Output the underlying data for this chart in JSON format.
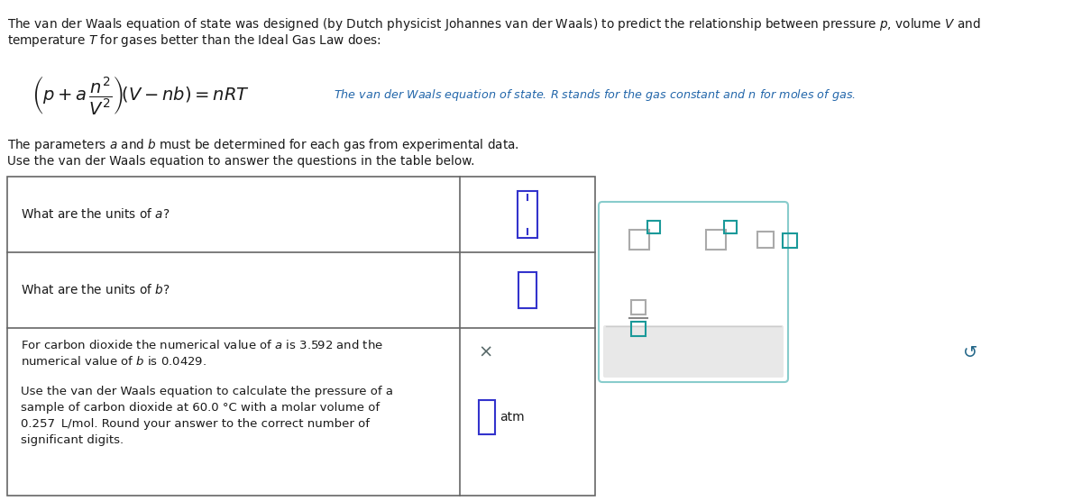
{
  "bg_color": "#ffffff",
  "text_color": "#1a1a1a",
  "italic_text_color": "#444444",
  "table_border_color": "#666666",
  "input_box_blue": "#3333cc",
  "input_box_teal": "#1a9999",
  "popup_border_color": "#88cccc",
  "popup_bg": "#ffffff",
  "popup_footer_bg": "#e8e8e8",
  "note_color": "#2266aa",
  "x_color": "#556666",
  "undo_color": "#226688",
  "top_line1": "The van der Waals equation of state was designed (by Dutch physicist Johannes van der Waals) to predict the relationship between pressure $p$, volume $V$ and",
  "top_line2": "temperature $T$ for gases better than the Ideal Gas Law does:",
  "param_text": "The parameters $a$ and $b$ must be determined for each gas from experimental data.",
  "use_text": "Use the van der Waals equation to answer the questions in the table below.",
  "note_text": "The van der Waals equation of state. $R$ stands for the gas constant and $n$ for moles of gas.",
  "row1_q": "What are the units of $a$?",
  "row2_q": "What are the units of $b$?",
  "row3_q1a": "For carbon dioxide the numerical value of $a$ is 3.592 and the",
  "row3_q1b": "numerical value of $b$ is 0.0429.",
  "row3_q2a": "Use the van der Waals equation to calculate the pressure of a",
  "row3_q2b": "sample of carbon dioxide at 60.0 °C with a molar volume of",
  "row3_q2c": "0.257  L/mol. Round your answer to the correct number of",
  "row3_q2d": "significant digits.",
  "atm_label": "atm"
}
